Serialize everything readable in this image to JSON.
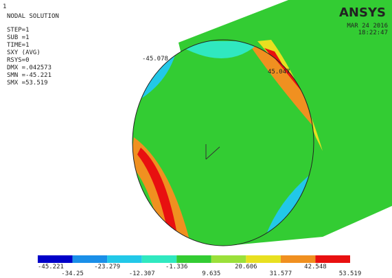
{
  "window_number": "1",
  "info": {
    "title": "NODAL SOLUTION",
    "lines": [
      "STEP=1",
      "SUB =1",
      "TIME=1",
      "SXY      (AVG)",
      "RSYS=0",
      "DMX =.042573",
      "SMN =-45.221",
      "SMX =53.519"
    ]
  },
  "logo": "ANSYS",
  "date": "MAR 24 2016",
  "time": "18:22:47",
  "annotations": [
    "45.047",
    "-45.078"
  ],
  "legend": {
    "colors": [
      "#0000c8",
      "#1a8fe8",
      "#22c8e8",
      "#30e8c0",
      "#33cc33",
      "#9be03a",
      "#e8e020",
      "#f09020",
      "#e81010"
    ],
    "labels": [
      "-45.221",
      "-34.25",
      "-23.279",
      "-12.307",
      "-1.336",
      "9.635",
      "20.606",
      "31.577",
      "42.548",
      "53.519"
    ]
  }
}
